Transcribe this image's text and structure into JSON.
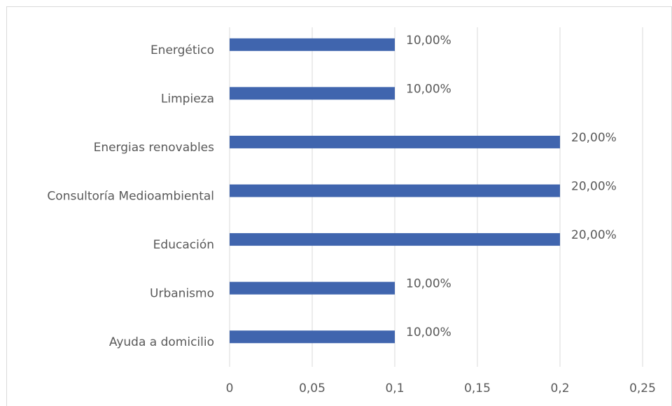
{
  "chart_data": {
    "type": "bar",
    "orientation": "horizontal",
    "categories": [
      "Energético",
      "Limpieza",
      "Energias renovables",
      "Consultoría Medioambiental",
      "Educación",
      "Urbanismo",
      "Ayuda a domicilio"
    ],
    "values": [
      0.1,
      0.1,
      0.2,
      0.2,
      0.2,
      0.1,
      0.1
    ],
    "value_labels": [
      "10,00%",
      "10,00%",
      "20,00%",
      "20,00%",
      "20,00%",
      "10,00%",
      "10,00%"
    ],
    "color": "#4065ae",
    "xlim": [
      0,
      0.25
    ],
    "xticks": [
      0,
      {
        "value": 0.05,
        "label": "0,05"
      },
      {
        "value": 0.1,
        "label": "0,1"
      },
      {
        "value": 0.15,
        "label": "0,15"
      },
      {
        "value": 0.2,
        "label": "0,2"
      },
      {
        "value": 0.25,
        "label": "0,25"
      }
    ],
    "grid": true
  }
}
